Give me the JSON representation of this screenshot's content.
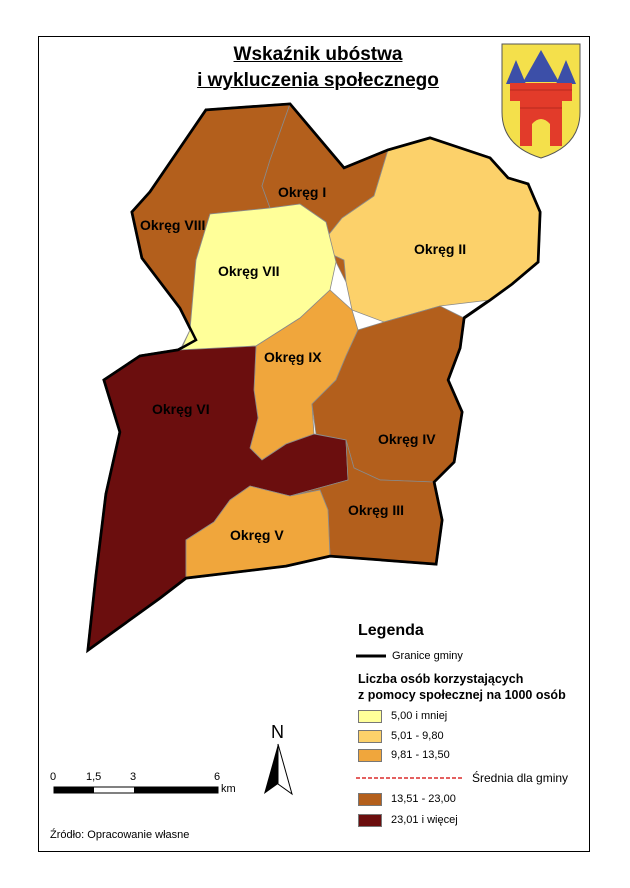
{
  "title": {
    "line1": "Wskaźnik ubóstwa",
    "line2": "i wykluczenia społecznego"
  },
  "colors": {
    "class1": "#ffff99",
    "class2": "#fcd16a",
    "class3": "#f0a63c",
    "class4": "#b35f1c",
    "class5": "#6b0e0e",
    "boundary": "#000000",
    "average_line": "#d40000"
  },
  "districts": [
    {
      "label": "Okręg I",
      "class": "13,51 - 23,00"
    },
    {
      "label": "Okręg II",
      "class": "5,01 - 9,80"
    },
    {
      "label": "Okręg III",
      "class": "13,51 - 23,00"
    },
    {
      "label": "Okręg IV",
      "class": "13,51 - 23,00"
    },
    {
      "label": "Okręg V",
      "class": "9,81 - 13,50"
    },
    {
      "label": "Okręg VI",
      "class": "23,01 i więcej"
    },
    {
      "label": "Okręg VII",
      "class": "5,00 i mniej"
    },
    {
      "label": "Okręg VIII",
      "class": "13,51 - 23,00"
    },
    {
      "label": "Okręg IX",
      "class": "9,81 - 13,50"
    }
  ],
  "legend": {
    "title": "Legenda",
    "boundary_label": "Granice gminy",
    "subtitle_line1": "Liczba osób korzystających",
    "subtitle_line2": "z pomocy społecznej na 1000 osób",
    "classes": [
      {
        "label": "5,00 i mniej",
        "color": "#ffff99"
      },
      {
        "label": "5,01 - 9,80",
        "color": "#fcd16a"
      },
      {
        "label": "9,81 - 13,50",
        "color": "#f0a63c"
      },
      {
        "label": "13,51 - 23,00",
        "color": "#b35f1c"
      },
      {
        "label": "23,01 i więcej",
        "color": "#6b0e0e"
      }
    ],
    "average_label": "Średnia dla gminy"
  },
  "north_arrow": {
    "label": "N"
  },
  "scale_bar": {
    "ticks": [
      "0",
      "1,5",
      "3",
      "6"
    ],
    "unit": "km"
  },
  "source": "Źródło: Opracowanie własne",
  "coat_of_arms": {
    "icon": "coat-of-arms-icon"
  }
}
